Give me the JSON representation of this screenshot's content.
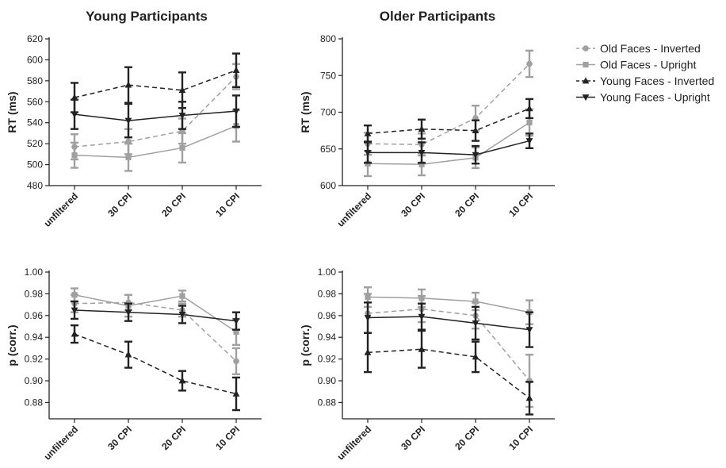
{
  "legend": {
    "placement": "right",
    "entries": [
      {
        "label": "Old Faces - Inverted",
        "color": "#a0a0a0",
        "dash": true,
        "marker": "circle"
      },
      {
        "label": "Old Faces - Upright",
        "color": "#a0a0a0",
        "dash": false,
        "marker": "square"
      },
      {
        "label": "Young Faces - Inverted",
        "color": "#222222",
        "dash": true,
        "marker": "triangle-up"
      },
      {
        "label": "Young Faces - Upright",
        "color": "#222222",
        "dash": false,
        "marker": "triangle-down"
      }
    ]
  },
  "chart_data": [
    {
      "type": "line",
      "title": "Young Participants",
      "ylabel": "RT (ms)",
      "categories": [
        "unfiltered",
        "30 CPI",
        "20 CPI",
        "10 CPI"
      ],
      "ylim": [
        480,
        620
      ],
      "yticks": [
        "480",
        "500",
        "520",
        "540",
        "560",
        "580",
        "600",
        "620"
      ],
      "series": [
        {
          "name": "Old Faces - Inverted",
          "values": [
            517,
            522,
            532,
            584
          ],
          "errors": [
            12,
            12,
            12,
            12
          ]
        },
        {
          "name": "Old Faces - Upright",
          "values": [
            509,
            507,
            516,
            537
          ],
          "errors": [
            12,
            13,
            14,
            15
          ]
        },
        {
          "name": "Young Faces - Inverted",
          "values": [
            564,
            576,
            571,
            590
          ],
          "errors": [
            14,
            17,
            17,
            16
          ]
        },
        {
          "name": "Young Faces - Upright",
          "values": [
            548,
            542,
            547,
            551
          ],
          "errors": [
            14,
            16,
            13,
            15
          ]
        }
      ]
    },
    {
      "type": "line",
      "title": "Older Participants",
      "ylabel": "RT (ms)",
      "categories": [
        "unfiltered",
        "30 CPI",
        "20 CPI",
        "10 CPI"
      ],
      "ylim": [
        600,
        800
      ],
      "yticks": [
        "600",
        "650",
        "700",
        "750",
        "800"
      ],
      "series": [
        {
          "name": "Old Faces - Inverted",
          "values": [
            657,
            656,
            692,
            766
          ],
          "errors": [
            15,
            15,
            17,
            18
          ]
        },
        {
          "name": "Old Faces - Upright",
          "values": [
            630,
            629,
            638,
            686
          ],
          "errors": [
            17,
            15,
            14,
            18
          ]
        },
        {
          "name": "Young Faces - Inverted",
          "values": [
            671,
            677,
            675,
            705
          ],
          "errors": [
            11,
            13,
            14,
            13
          ]
        },
        {
          "name": "Young Faces - Upright",
          "values": [
            645,
            645,
            642,
            661
          ],
          "errors": [
            14,
            14,
            12,
            10
          ]
        }
      ]
    },
    {
      "type": "line",
      "title": "",
      "ylabel": "p (corr.)",
      "categories": [
        "unfiltered",
        "30 CPI",
        "20 CPI",
        "10 CPI"
      ],
      "ylim": [
        0.865,
        1.0
      ],
      "yticks": [
        "0.88",
        "0.90",
        "0.92",
        "0.94",
        "0.96",
        "0.98",
        "1.00"
      ],
      "series": [
        {
          "name": "Old Faces - Inverted",
          "values": [
            0.971,
            0.972,
            0.965,
            0.918
          ],
          "errors": [
            0.008,
            0.007,
            0.006,
            0.012
          ]
        },
        {
          "name": "Old Faces - Upright",
          "values": [
            0.979,
            0.969,
            0.978,
            0.945
          ],
          "errors": [
            0.006,
            0.01,
            0.005,
            0.012
          ]
        },
        {
          "name": "Young Faces - Inverted",
          "values": [
            0.943,
            0.924,
            0.9,
            0.888
          ],
          "errors": [
            0.008,
            0.012,
            0.009,
            0.015
          ]
        },
        {
          "name": "Young Faces - Upright",
          "values": [
            0.965,
            0.963,
            0.961,
            0.955
          ],
          "errors": [
            0.008,
            0.008,
            0.008,
            0.008
          ]
        }
      ]
    },
    {
      "type": "line",
      "title": "",
      "ylabel": "p (corr.)",
      "categories": [
        "unfiltered",
        "30 CPI",
        "20 CPI",
        "10 CPI"
      ],
      "ylim": [
        0.865,
        1.0
      ],
      "yticks": [
        "0.88",
        "0.90",
        "0.92",
        "0.94",
        "0.96",
        "0.98",
        "1.00"
      ],
      "series": [
        {
          "name": "Old Faces - Inverted",
          "values": [
            0.962,
            0.966,
            0.96,
            0.9
          ],
          "errors": [
            0.018,
            0.012,
            0.012,
            0.024
          ]
        },
        {
          "name": "Old Faces - Upright",
          "values": [
            0.977,
            0.976,
            0.973,
            0.963
          ],
          "errors": [
            0.009,
            0.008,
            0.008,
            0.011
          ]
        },
        {
          "name": "Young Faces - Inverted",
          "values": [
            0.926,
            0.929,
            0.922,
            0.884
          ],
          "errors": [
            0.018,
            0.017,
            0.014,
            0.015
          ]
        },
        {
          "name": "Young Faces - Upright",
          "values": [
            0.958,
            0.959,
            0.953,
            0.947
          ],
          "errors": [
            0.014,
            0.012,
            0.015,
            0.016
          ]
        }
      ]
    }
  ]
}
